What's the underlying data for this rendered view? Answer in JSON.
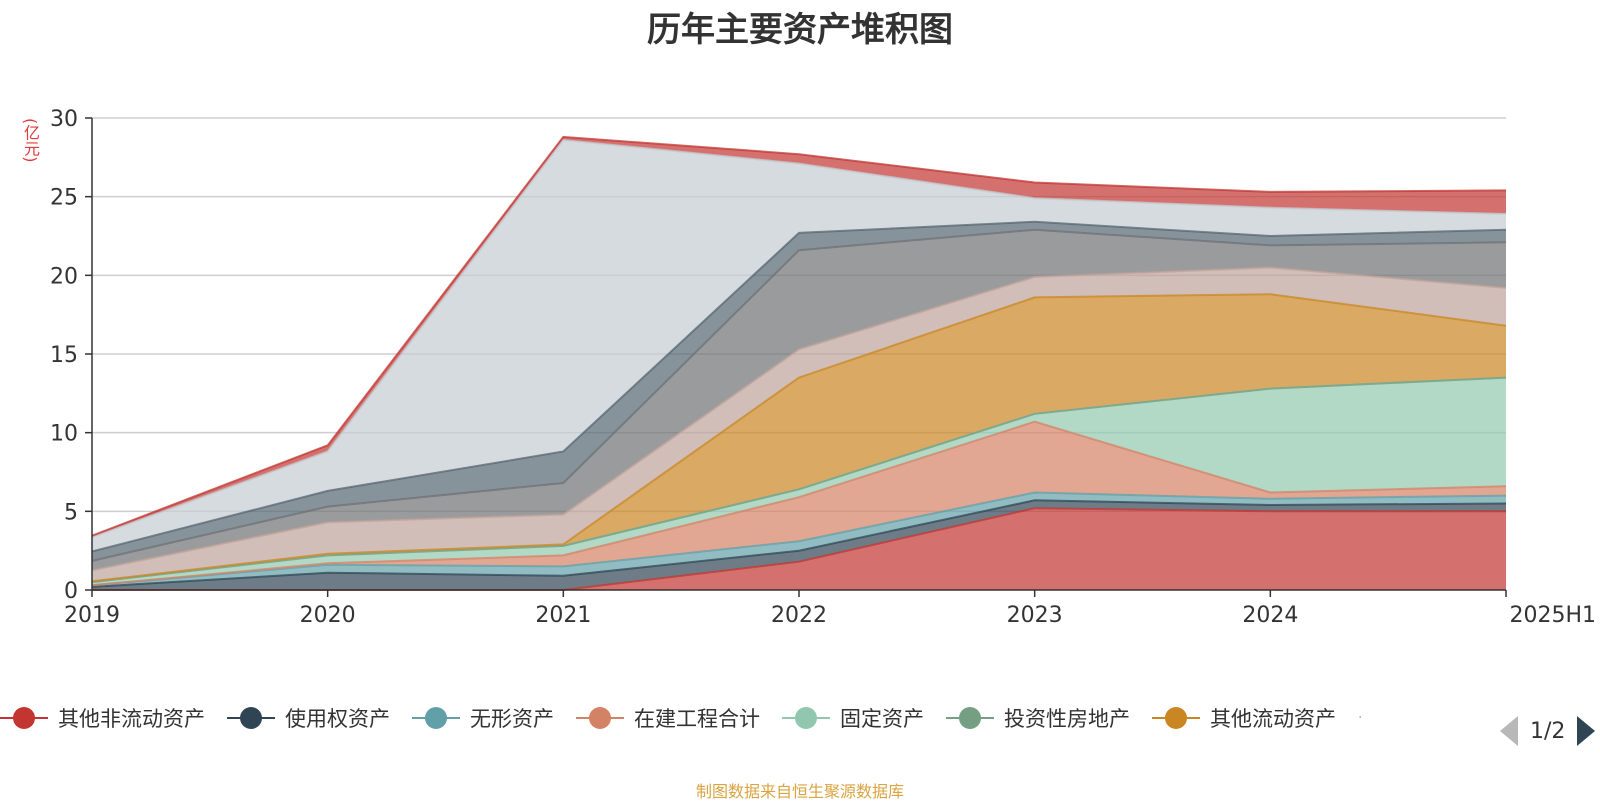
{
  "title": "历年主要资产堆积图",
  "source_note": "制图数据来自恒生聚源数据库",
  "legend": {
    "items": [
      {
        "label": "其他非流动资产",
        "color": "#c23531"
      },
      {
        "label": "使用权资产",
        "color": "#2f4554"
      },
      {
        "label": "无形资产",
        "color": "#61a0a8"
      },
      {
        "label": "在建工程合计",
        "color": "#d48265"
      },
      {
        "label": "固定资产",
        "color": "#91c7ae"
      },
      {
        "label": "投资性房地产",
        "color": "#749f83"
      },
      {
        "label": "其他流动资产",
        "color": "#ca8622"
      }
    ],
    "page_indicator": "1/2"
  },
  "chart_data": {
    "type": "area",
    "stacked": true,
    "title": "历年主要资产堆积图",
    "ylabel": "(亿元)",
    "xlabel": "",
    "x": [
      "2019",
      "2020",
      "2021",
      "2022",
      "2023",
      "2024",
      "2025H1"
    ],
    "ylim": [
      0,
      30
    ],
    "yticks": [
      0,
      5,
      10,
      15,
      20,
      25,
      30
    ],
    "grid": true,
    "legend_position": "bottom",
    "series": [
      {
        "name": "其他非流动资产",
        "color": "#c23531",
        "values": [
          0,
          0,
          0,
          1.8,
          5.2,
          5.0,
          5.0
        ]
      },
      {
        "name": "使用权资产",
        "color": "#2f4554",
        "values": [
          0.2,
          1.1,
          0.9,
          0.7,
          0.5,
          0.4,
          0.5
        ]
      },
      {
        "name": "无形资产",
        "color": "#61a0a8",
        "values": [
          0.1,
          0.5,
          0.6,
          0.6,
          0.5,
          0.4,
          0.5
        ]
      },
      {
        "name": "在建工程合计",
        "color": "#d48265",
        "values": [
          0,
          0.1,
          0.7,
          2.8,
          4.5,
          0.4,
          0.6
        ]
      },
      {
        "name": "固定资产",
        "color": "#91c7ae",
        "values": [
          0.2,
          0.5,
          0.6,
          0.5,
          0.5,
          6.6,
          6.9
        ]
      },
      {
        "name": "投资性房地产",
        "color": "#749f83",
        "values": [
          0,
          0,
          0,
          0,
          0,
          0,
          0
        ]
      },
      {
        "name": "其他流动资产",
        "color": "#ca8622",
        "values": [
          0.05,
          0.1,
          0.1,
          7.1,
          7.4,
          6.0,
          3.3
        ]
      },
      {
        "color": "#bda29a",
        "values": [
          0.7,
          2.0,
          1.9,
          1.8,
          1.3,
          1.7,
          2.4
        ]
      },
      {
        "color": "#6e7074",
        "values": [
          0.6,
          1.0,
          2.0,
          6.3,
          3.0,
          1.4,
          2.9
        ]
      },
      {
        "color": "#546570",
        "values": [
          0.6,
          1.0,
          2.0,
          1.1,
          0.5,
          0.6,
          0.8
        ]
      },
      {
        "color": "#c4ccd3",
        "values": [
          0.9,
          2.5,
          19.8,
          4.4,
          1.5,
          1.8,
          1.0
        ]
      },
      {
        "color": "#c23531",
        "values": [
          0.1,
          0.4,
          0.2,
          0.6,
          1.0,
          1.0,
          1.5
        ]
      }
    ]
  }
}
